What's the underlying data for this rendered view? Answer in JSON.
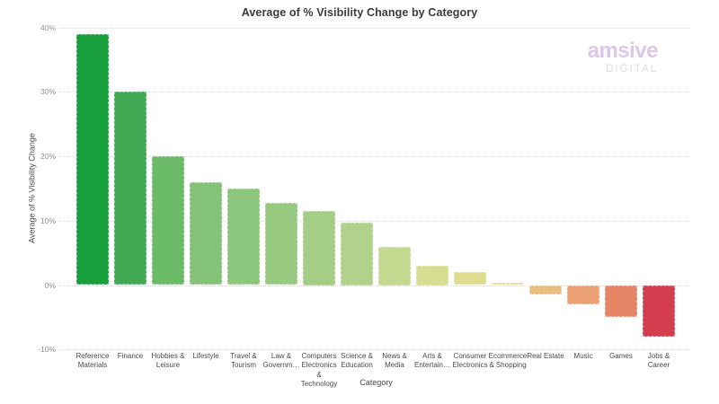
{
  "title": "Average of % Visibility Change by Category",
  "logo": {
    "name": "amsive",
    "sub": "DIGITAL",
    "color": "#dcc7e6",
    "sub_color": "#dcdcdc"
  },
  "chart_data": {
    "type": "bar",
    "title": "Average of % Visibility Change by Category",
    "xlabel": "Category",
    "ylabel": "Average of % Visibility Change",
    "ylim": [
      -10,
      40
    ],
    "yticks": [
      40,
      30,
      20,
      10,
      0,
      -10
    ],
    "ytick_labels": [
      "40%",
      "30%",
      "20%",
      "10%",
      "0%",
      "-10%"
    ],
    "grid": "horizontal-dotted",
    "legend": "none",
    "categories": [
      "Reference\nMaterials",
      "Finance",
      "Hobbies &\nLeisure",
      "Lifestyle",
      "Travel &\nTourism",
      "Law &\nGovernm…",
      "Computers\nElectronics\n&\nTechnology",
      "Science &\nEducation",
      "News &\nMedia",
      "Arts &\nEntertain…",
      "Consumer\nElectronics",
      "Ecommerce\n& Shopping",
      "Real Estate",
      "Music",
      "Games",
      "Jobs &\nCareer"
    ],
    "values": [
      39,
      30,
      20,
      16,
      15,
      12.8,
      11.5,
      9.7,
      6,
      3,
      2,
      0.3,
      -1.5,
      -3,
      -5,
      -8
    ],
    "bar_colors": [
      "#18a03d",
      "#42aa55",
      "#6bbb68",
      "#84c277",
      "#8cc57c",
      "#98c980",
      "#a4cd86",
      "#b1d28a",
      "#c3d990",
      "#d6dd8f",
      "#dedc8d",
      "#e5d584",
      "#eabd7e",
      "#eda275",
      "#e68566",
      "#d43f50"
    ]
  }
}
